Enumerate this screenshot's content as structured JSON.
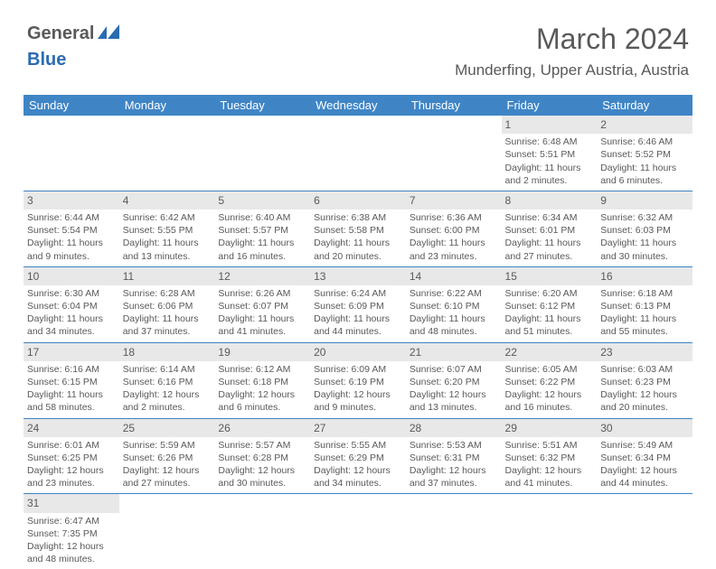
{
  "logo": {
    "text1": "General",
    "text2": "Blue"
  },
  "title": "March 2024",
  "location": "Munderfing, Upper Austria, Austria",
  "colors": {
    "header_bg": "#3f85c6",
    "header_fg": "#ffffff",
    "daynum_bg": "#e8e8e8",
    "text": "#595959",
    "border": "#3f85c6",
    "logo_accent": "#2b6cb0"
  },
  "weekdays": [
    "Sunday",
    "Monday",
    "Tuesday",
    "Wednesday",
    "Thursday",
    "Friday",
    "Saturday"
  ],
  "weeks": [
    [
      null,
      null,
      null,
      null,
      null,
      {
        "n": "1",
        "sr": "6:48 AM",
        "ss": "5:51 PM",
        "dl": "11 hours and 2 minutes."
      },
      {
        "n": "2",
        "sr": "6:46 AM",
        "ss": "5:52 PM",
        "dl": "11 hours and 6 minutes."
      }
    ],
    [
      {
        "n": "3",
        "sr": "6:44 AM",
        "ss": "5:54 PM",
        "dl": "11 hours and 9 minutes."
      },
      {
        "n": "4",
        "sr": "6:42 AM",
        "ss": "5:55 PM",
        "dl": "11 hours and 13 minutes."
      },
      {
        "n": "5",
        "sr": "6:40 AM",
        "ss": "5:57 PM",
        "dl": "11 hours and 16 minutes."
      },
      {
        "n": "6",
        "sr": "6:38 AM",
        "ss": "5:58 PM",
        "dl": "11 hours and 20 minutes."
      },
      {
        "n": "7",
        "sr": "6:36 AM",
        "ss": "6:00 PM",
        "dl": "11 hours and 23 minutes."
      },
      {
        "n": "8",
        "sr": "6:34 AM",
        "ss": "6:01 PM",
        "dl": "11 hours and 27 minutes."
      },
      {
        "n": "9",
        "sr": "6:32 AM",
        "ss": "6:03 PM",
        "dl": "11 hours and 30 minutes."
      }
    ],
    [
      {
        "n": "10",
        "sr": "6:30 AM",
        "ss": "6:04 PM",
        "dl": "11 hours and 34 minutes."
      },
      {
        "n": "11",
        "sr": "6:28 AM",
        "ss": "6:06 PM",
        "dl": "11 hours and 37 minutes."
      },
      {
        "n": "12",
        "sr": "6:26 AM",
        "ss": "6:07 PM",
        "dl": "11 hours and 41 minutes."
      },
      {
        "n": "13",
        "sr": "6:24 AM",
        "ss": "6:09 PM",
        "dl": "11 hours and 44 minutes."
      },
      {
        "n": "14",
        "sr": "6:22 AM",
        "ss": "6:10 PM",
        "dl": "11 hours and 48 minutes."
      },
      {
        "n": "15",
        "sr": "6:20 AM",
        "ss": "6:12 PM",
        "dl": "11 hours and 51 minutes."
      },
      {
        "n": "16",
        "sr": "6:18 AM",
        "ss": "6:13 PM",
        "dl": "11 hours and 55 minutes."
      }
    ],
    [
      {
        "n": "17",
        "sr": "6:16 AM",
        "ss": "6:15 PM",
        "dl": "11 hours and 58 minutes."
      },
      {
        "n": "18",
        "sr": "6:14 AM",
        "ss": "6:16 PM",
        "dl": "12 hours and 2 minutes."
      },
      {
        "n": "19",
        "sr": "6:12 AM",
        "ss": "6:18 PM",
        "dl": "12 hours and 6 minutes."
      },
      {
        "n": "20",
        "sr": "6:09 AM",
        "ss": "6:19 PM",
        "dl": "12 hours and 9 minutes."
      },
      {
        "n": "21",
        "sr": "6:07 AM",
        "ss": "6:20 PM",
        "dl": "12 hours and 13 minutes."
      },
      {
        "n": "22",
        "sr": "6:05 AM",
        "ss": "6:22 PM",
        "dl": "12 hours and 16 minutes."
      },
      {
        "n": "23",
        "sr": "6:03 AM",
        "ss": "6:23 PM",
        "dl": "12 hours and 20 minutes."
      }
    ],
    [
      {
        "n": "24",
        "sr": "6:01 AM",
        "ss": "6:25 PM",
        "dl": "12 hours and 23 minutes."
      },
      {
        "n": "25",
        "sr": "5:59 AM",
        "ss": "6:26 PM",
        "dl": "12 hours and 27 minutes."
      },
      {
        "n": "26",
        "sr": "5:57 AM",
        "ss": "6:28 PM",
        "dl": "12 hours and 30 minutes."
      },
      {
        "n": "27",
        "sr": "5:55 AM",
        "ss": "6:29 PM",
        "dl": "12 hours and 34 minutes."
      },
      {
        "n": "28",
        "sr": "5:53 AM",
        "ss": "6:31 PM",
        "dl": "12 hours and 37 minutes."
      },
      {
        "n": "29",
        "sr": "5:51 AM",
        "ss": "6:32 PM",
        "dl": "12 hours and 41 minutes."
      },
      {
        "n": "30",
        "sr": "5:49 AM",
        "ss": "6:34 PM",
        "dl": "12 hours and 44 minutes."
      }
    ],
    [
      {
        "n": "31",
        "sr": "6:47 AM",
        "ss": "7:35 PM",
        "dl": "12 hours and 48 minutes."
      },
      null,
      null,
      null,
      null,
      null,
      null
    ]
  ],
  "labels": {
    "sunrise": "Sunrise: ",
    "sunset": "Sunset: ",
    "daylight": "Daylight: "
  }
}
